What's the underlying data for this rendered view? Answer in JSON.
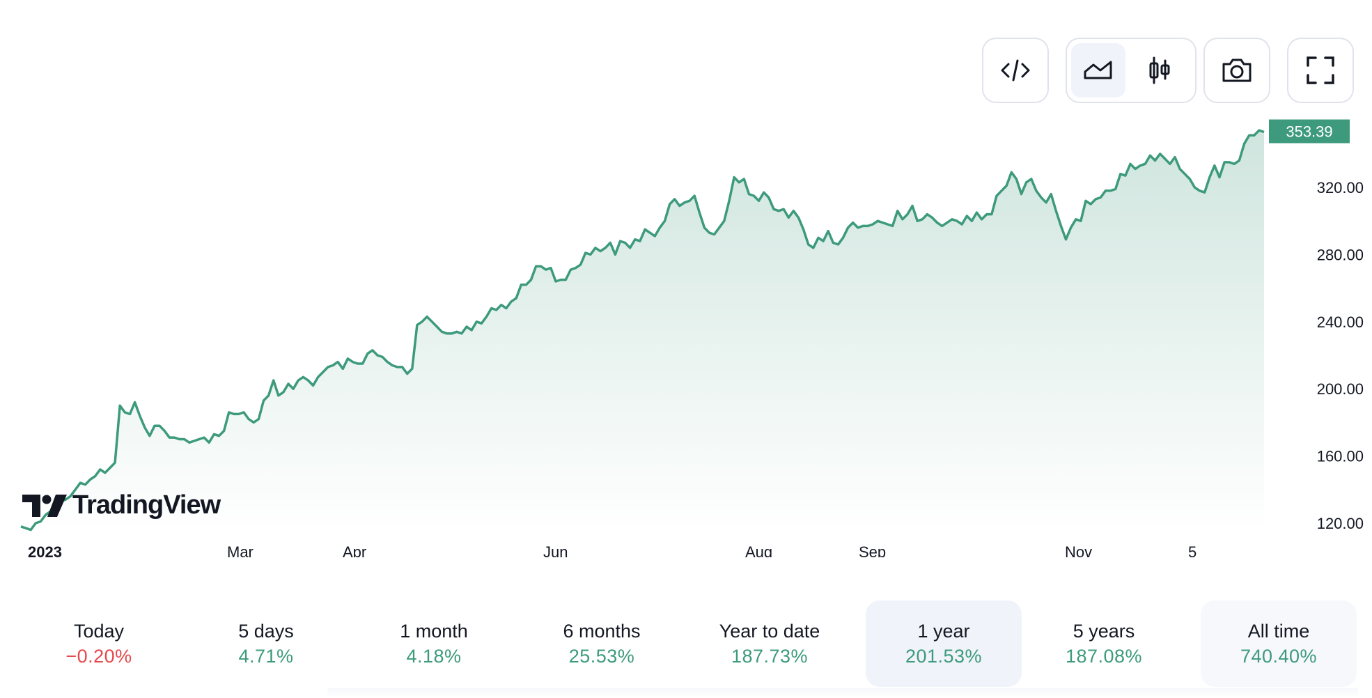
{
  "toolbar": {
    "buttons": [
      {
        "name": "embed-code-button",
        "icon": "code-icon"
      },
      {
        "name": "area-chart-button",
        "icon": "area-chart-icon",
        "active": true
      },
      {
        "name": "candlestick-chart-button",
        "icon": "candlestick-icon"
      },
      {
        "name": "snapshot-button",
        "icon": "camera-icon"
      },
      {
        "name": "fullscreen-button",
        "icon": "fullscreen-icon"
      }
    ]
  },
  "logo": {
    "text": "TradingView",
    "icon": "tradingview-logo-icon"
  },
  "colors": {
    "line": "#3d9a7c",
    "area_top": "#cfe5de",
    "area_bottom": "#ffffff",
    "price_tag": "#3d9a7c",
    "positive": "#3d9a7c",
    "negative": "#e5484d",
    "active_bg": "#f0f3fa"
  },
  "chart_data": {
    "type": "area",
    "title": "",
    "xlabel": "",
    "ylabel": "",
    "y_ticks": [
      "120.00",
      "160.00",
      "200.00",
      "240.00",
      "280.00",
      "320.00"
    ],
    "ylim": [
      115,
      362
    ],
    "x_ticks": [
      "2023",
      "Mar",
      "Apr",
      "Jun",
      "Aug",
      "Sep",
      "Nov",
      "5"
    ],
    "last_price": "353.39",
    "grid": false,
    "legend": "none",
    "values": [
      118,
      117,
      116,
      120,
      121,
      125,
      127,
      131,
      133,
      134,
      136,
      140,
      144,
      143,
      146,
      148,
      152,
      150,
      153,
      156,
      190,
      186,
      185,
      192,
      184,
      177,
      172,
      178,
      178,
      175,
      171,
      171,
      170,
      170,
      168,
      169,
      170,
      171,
      168,
      173,
      172,
      175,
      186,
      185,
      185,
      186,
      182,
      180,
      182,
      193,
      196,
      205,
      196,
      198,
      203,
      200,
      205,
      207,
      205,
      202,
      207,
      210,
      213,
      214,
      216,
      212,
      218,
      216,
      215,
      215,
      221,
      223,
      220,
      219,
      216,
      214,
      213,
      213,
      209,
      212,
      238,
      240,
      243,
      240,
      237,
      234,
      233,
      233,
      234,
      233,
      237,
      235,
      240,
      239,
      243,
      248,
      247,
      250,
      248,
      252,
      254,
      262,
      262,
      265,
      273,
      273,
      271,
      272,
      264,
      265,
      265,
      271,
      272,
      274,
      281,
      280,
      284,
      282,
      284,
      287,
      280,
      288,
      287,
      284,
      289,
      288,
      295,
      293,
      291,
      296,
      300,
      310,
      313,
      309,
      311,
      312,
      315,
      305,
      296,
      293,
      292,
      296,
      300,
      312,
      326,
      323,
      325,
      316,
      315,
      312,
      317,
      314,
      307,
      306,
      307,
      302,
      306,
      302,
      295,
      286,
      284,
      290,
      288,
      294,
      287,
      286,
      290,
      296,
      299,
      296,
      297,
      297,
      298,
      300,
      299,
      298,
      297,
      306,
      301,
      304,
      309,
      300,
      301,
      304,
      302,
      299,
      297,
      299,
      301,
      300,
      298,
      303,
      300,
      305,
      301,
      304,
      304,
      315,
      318,
      321,
      329,
      325,
      316,
      323,
      325,
      318,
      314,
      311,
      316,
      306,
      297,
      289,
      296,
      301,
      300,
      312,
      310,
      313,
      314,
      318,
      318,
      319,
      328,
      327,
      334,
      331,
      333,
      334,
      339,
      336,
      340,
      337,
      334,
      338,
      331,
      328,
      325,
      320,
      318,
      317,
      326,
      333,
      326,
      335,
      335,
      334,
      336,
      346,
      351,
      351,
      354,
      353
    ]
  },
  "ranges": [
    {
      "label": "Today",
      "value": "−0.20%",
      "sign": "neg",
      "state": "normal"
    },
    {
      "label": "5 days",
      "value": "4.71%",
      "sign": "pos",
      "state": "normal"
    },
    {
      "label": "1 month",
      "value": "4.18%",
      "sign": "pos",
      "state": "normal"
    },
    {
      "label": "6 months",
      "value": "25.53%",
      "sign": "pos",
      "state": "normal"
    },
    {
      "label": "Year to date",
      "value": "187.73%",
      "sign": "pos",
      "state": "normal"
    },
    {
      "label": "1 year",
      "value": "201.53%",
      "sign": "pos",
      "state": "active"
    },
    {
      "label": "5 years",
      "value": "187.08%",
      "sign": "pos",
      "state": "normal"
    },
    {
      "label": "All time",
      "value": "740.40%",
      "sign": "pos",
      "state": "muted"
    }
  ]
}
